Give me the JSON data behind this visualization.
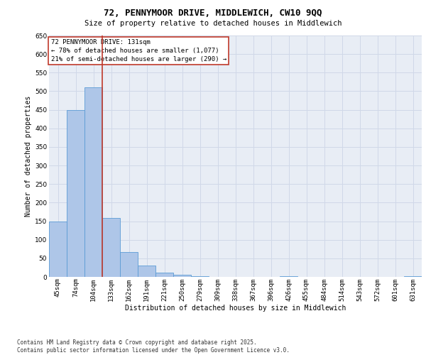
{
  "title_line1": "72, PENNYMOOR DRIVE, MIDDLEWICH, CW10 9QQ",
  "title_line2": "Size of property relative to detached houses in Middlewich",
  "xlabel": "Distribution of detached houses by size in Middlewich",
  "ylabel": "Number of detached properties",
  "categories": [
    "45sqm",
    "74sqm",
    "104sqm",
    "133sqm",
    "162sqm",
    "191sqm",
    "221sqm",
    "250sqm",
    "279sqm",
    "309sqm",
    "338sqm",
    "367sqm",
    "396sqm",
    "426sqm",
    "455sqm",
    "484sqm",
    "514sqm",
    "543sqm",
    "572sqm",
    "601sqm",
    "631sqm"
  ],
  "values": [
    150,
    450,
    510,
    158,
    67,
    30,
    12,
    6,
    1,
    0,
    0,
    0,
    0,
    1,
    0,
    0,
    0,
    0,
    0,
    0,
    1
  ],
  "bar_color": "#aec6e8",
  "bar_edge_color": "#5b9bd5",
  "vline_x": 2.5,
  "vline_color": "#c0392b",
  "annotation_box_text": "72 PENNYMOOR DRIVE: 131sqm\n← 78% of detached houses are smaller (1,077)\n21% of semi-detached houses are larger (290) →",
  "annotation_box_color": "#c0392b",
  "annotation_box_bg": "#ffffff",
  "ylim": [
    0,
    650
  ],
  "yticks": [
    0,
    50,
    100,
    150,
    200,
    250,
    300,
    350,
    400,
    450,
    500,
    550,
    600,
    650
  ],
  "grid_color": "#d0d8e8",
  "background_color": "#e8edf5",
  "footer_text": "Contains HM Land Registry data © Crown copyright and database right 2025.\nContains public sector information licensed under the Open Government Licence v3.0.",
  "annotation_fontsize": 6.5,
  "title1_fontsize": 9,
  "title2_fontsize": 7.5,
  "axis_label_fontsize": 7,
  "tick_fontsize": 6.5,
  "footer_fontsize": 5.5
}
